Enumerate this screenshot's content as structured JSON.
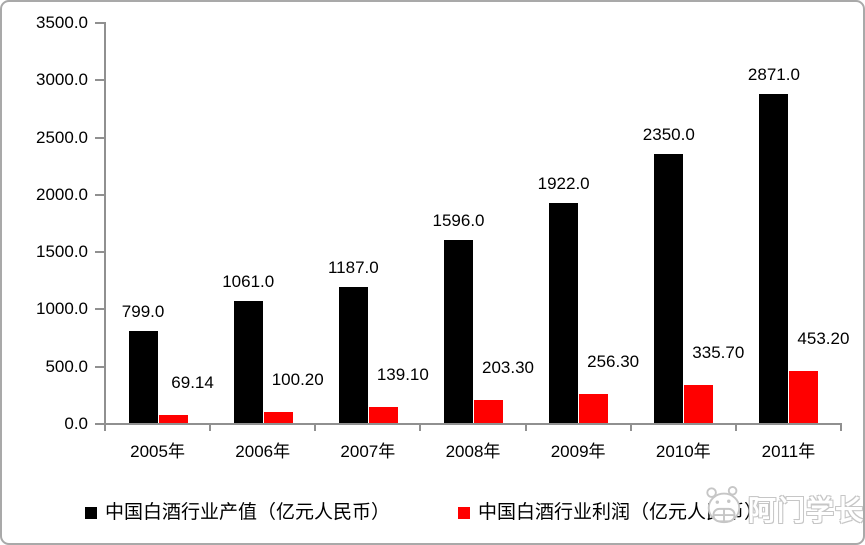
{
  "chart_data": {
    "type": "bar",
    "title": "",
    "xlabel": "",
    "ylabel": "",
    "categories": [
      "2005年",
      "2006年",
      "2007年",
      "2008年",
      "2009年",
      "2010年",
      "2011年"
    ],
    "series": [
      {
        "name": "中国白酒行业产值（亿元人民币）",
        "color": "#000000",
        "values": [
          799.0,
          1061.0,
          1187.0,
          1596.0,
          1922.0,
          2350.0,
          2871.0
        ],
        "labels": [
          "799.0",
          "1061.0",
          "1187.0",
          "1596.0",
          "1922.0",
          "2350.0",
          "2871.0"
        ]
      },
      {
        "name": "中国白酒行业利润（亿元人民币）",
        "color": "#FF0000",
        "values": [
          69.14,
          100.2,
          139.1,
          203.3,
          256.3,
          335.7,
          453.2
        ],
        "labels": [
          "69.14",
          "100.20",
          "139.10",
          "203.30",
          "256.30",
          "335.70",
          "453.20"
        ]
      }
    ],
    "ylim": [
      0,
      3500
    ],
    "ytick_step": 500,
    "ytick_labels": [
      "0.0",
      "500.0",
      "1000.0",
      "1500.0",
      "2000.0",
      "2500.0",
      "3000.0",
      "3500.0"
    ],
    "grid": false,
    "legend_position": "bottom",
    "axis_color": "#909090"
  },
  "watermark": {
    "text": "阿门学长",
    "icon": "cartoon-mascot-icon",
    "color": "#C6C6C6"
  },
  "frame": {
    "background": "#FFFFFF",
    "border_color": "#A9A9A9"
  }
}
